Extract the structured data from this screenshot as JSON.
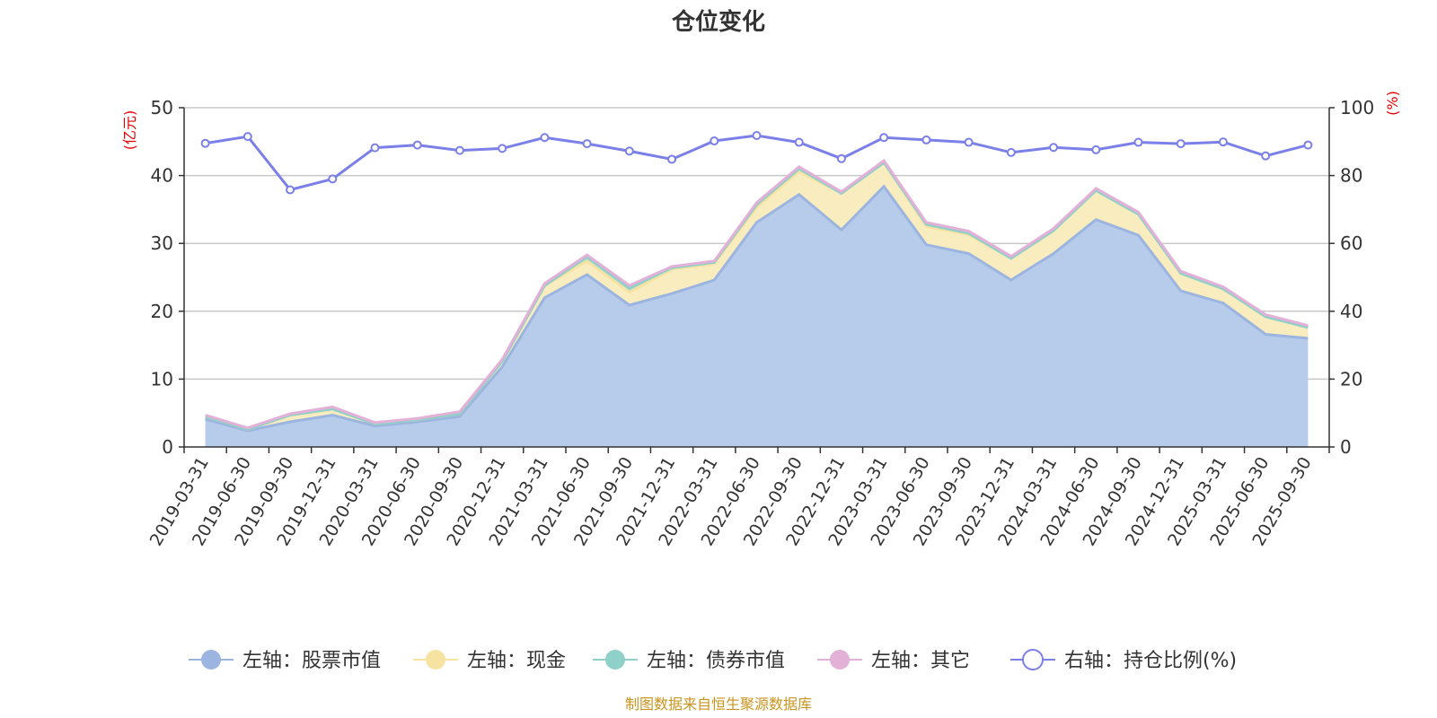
{
  "chart_data": {
    "type": "area",
    "title": "仓位变化",
    "left_axis_unit": "(亿元)",
    "right_axis_unit": "(%)",
    "ylim_left": [
      0,
      50
    ],
    "yticks_left": [
      0,
      10,
      20,
      30,
      40,
      50
    ],
    "ylim_right": [
      0,
      100
    ],
    "yticks_right": [
      0,
      20,
      40,
      60,
      80,
      100
    ],
    "grid": true,
    "legend_position": "bottom",
    "categories": [
      "2019-03-31",
      "2019-06-30",
      "2019-09-30",
      "2019-12-31",
      "2020-03-31",
      "2020-06-30",
      "2020-09-30",
      "2020-12-31",
      "2021-03-31",
      "2021-06-30",
      "2021-09-30",
      "2021-12-31",
      "2022-03-31",
      "2022-06-30",
      "2022-09-30",
      "2022-12-31",
      "2023-03-31",
      "2023-06-30",
      "2023-09-30",
      "2023-12-31",
      "2024-03-31",
      "2024-06-30",
      "2024-09-30",
      "2024-12-31",
      "2025-03-31",
      "2025-06-30",
      "2025-09-30"
    ],
    "series": [
      {
        "name": "左轴：股票市值",
        "axis": "left",
        "kind": "area",
        "color": "#9bb5e0",
        "fill": "#b7cbea",
        "values": [
          4.1,
          2.4,
          3.7,
          4.7,
          3.1,
          3.7,
          4.5,
          11.8,
          22.0,
          25.4,
          20.9,
          22.6,
          24.6,
          33.1,
          37.2,
          32.0,
          38.4,
          29.8,
          28.5,
          24.6,
          28.5,
          33.5,
          31.2,
          23.0,
          21.2,
          16.6,
          16.0
        ]
      },
      {
        "name": "左轴：现金",
        "axis": "left",
        "kind": "area",
        "color": "#f6e3a1",
        "fill": "#f9ecbe",
        "values": [
          0.4,
          0.2,
          1.0,
          0.9,
          0.3,
          0.3,
          0.4,
          0.8,
          1.8,
          2.0,
          1.9,
          3.6,
          2.4,
          2.2,
          3.4,
          5.4,
          3.5,
          2.7,
          2.8,
          3.2,
          3.4,
          4.3,
          3.1,
          2.6,
          2.1,
          2.6,
          1.6
        ]
      },
      {
        "name": "左轴：债券市值",
        "axis": "left",
        "kind": "area",
        "color": "#8fd0c8",
        "fill": "#a9dcd4",
        "values": [
          0,
          0,
          0,
          0,
          0,
          0,
          0,
          0,
          0,
          0.6,
          0.6,
          0.2,
          0.2,
          0.4,
          0.4,
          0,
          0,
          0.3,
          0.2,
          0,
          0,
          0,
          0,
          0,
          0,
          0,
          0
        ]
      },
      {
        "name": "左轴：其它",
        "axis": "left",
        "kind": "area",
        "color": "#e3b0d8",
        "fill": "#e9c3e2",
        "values": [
          0.2,
          0.2,
          0.2,
          0.3,
          0.2,
          0.2,
          0.3,
          0.3,
          0.3,
          0.3,
          0.4,
          0.2,
          0.2,
          0.3,
          0.3,
          0.2,
          0.3,
          0.3,
          0.3,
          0.3,
          0.3,
          0.3,
          0.3,
          0.3,
          0.3,
          0.3,
          0.3
        ]
      },
      {
        "name": "右轴：持仓比例(%)",
        "axis": "right",
        "kind": "line",
        "color": "#7b7fe8",
        "values": [
          89.5,
          91.5,
          75.8,
          79.0,
          88.2,
          89.0,
          87.4,
          88.0,
          91.2,
          89.4,
          87.2,
          84.8,
          90.2,
          91.8,
          89.8,
          85.0,
          91.2,
          90.5,
          89.8,
          86.8,
          88.3,
          87.6,
          89.8,
          89.4,
          89.9,
          85.8,
          89.0
        ]
      }
    ],
    "source": "制图数据来自恒生聚源数据库"
  }
}
